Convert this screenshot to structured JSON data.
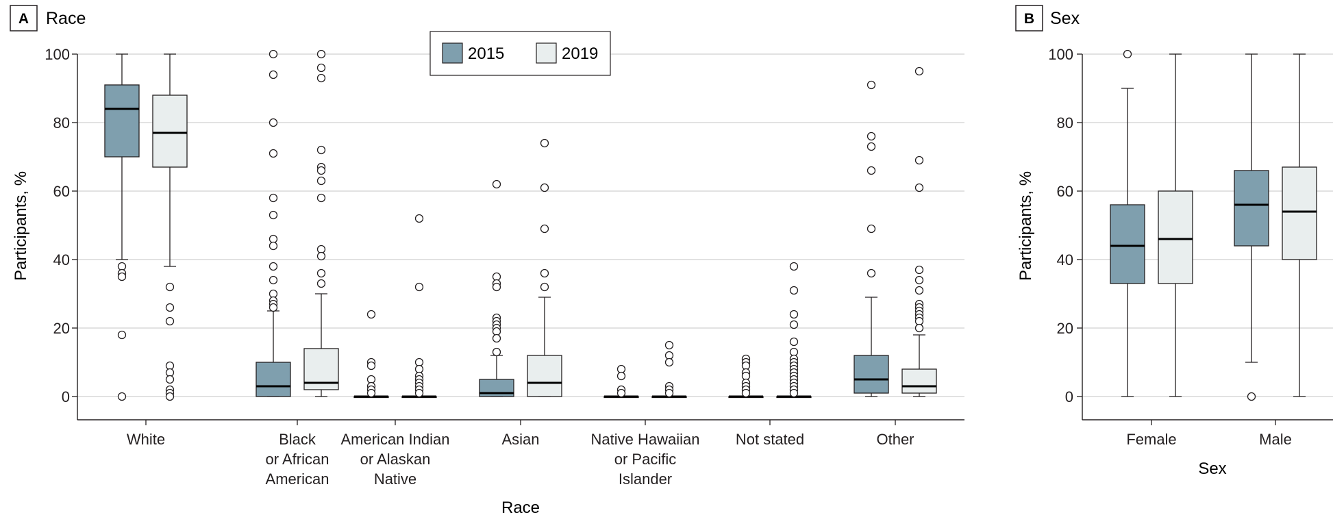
{
  "colors": {
    "series_2015": "#7f9fae",
    "series_2019": "#e9eeee",
    "grid": "#d9d9d9",
    "axis": "#231f20"
  },
  "chart_data": [
    {
      "type": "box",
      "panel_label": "A",
      "title": "Race",
      "xlabel": "Race",
      "ylabel": "Participants, %",
      "ylim": [
        0,
        100
      ],
      "yticks": [
        0,
        20,
        40,
        60,
        80,
        100
      ],
      "grid": true,
      "legend_position": "top-center",
      "series": [
        {
          "name": "2015",
          "color_key": "series_2015"
        },
        {
          "name": "2019",
          "color_key": "series_2019"
        }
      ],
      "categories": [
        {
          "label_lines": [
            "White"
          ],
          "boxes": [
            {
              "series": "2015",
              "whisker_low": 40,
              "q1": 70,
              "median": 84,
              "q3": 91,
              "whisker_high": 100,
              "outliers": [
                38,
                36,
                35,
                18,
                0
              ]
            },
            {
              "series": "2019",
              "whisker_low": 38,
              "q1": 67,
              "median": 77,
              "q3": 88,
              "whisker_high": 100,
              "outliers": [
                32,
                26,
                22,
                9,
                7,
                5,
                2,
                1,
                0
              ]
            }
          ]
        },
        {
          "label_lines": [
            "Black",
            "or African",
            "American"
          ],
          "boxes": [
            {
              "series": "2015",
              "whisker_low": 0,
              "q1": 0,
              "median": 3,
              "q3": 10,
              "whisker_high": 25,
              "outliers": [
                100,
                94,
                80,
                71,
                58,
                53,
                46,
                44,
                38,
                34,
                30,
                28,
                27,
                26
              ]
            },
            {
              "series": "2019",
              "whisker_low": 0,
              "q1": 2,
              "median": 4,
              "q3": 14,
              "whisker_high": 30,
              "outliers": [
                100,
                96,
                93,
                72,
                67,
                66,
                63,
                58,
                43,
                41,
                36,
                33
              ]
            }
          ]
        },
        {
          "label_lines": [
            "American Indian",
            "or Alaskan",
            "Native"
          ],
          "boxes": [
            {
              "series": "2015",
              "whisker_low": 0,
              "q1": 0,
              "median": 0,
              "q3": 0,
              "whisker_high": 0,
              "outliers": [
                24,
                10,
                9,
                5,
                3,
                2,
                1
              ]
            },
            {
              "series": "2019",
              "whisker_low": 0,
              "q1": 0,
              "median": 0,
              "q3": 0,
              "whisker_high": 0,
              "outliers": [
                52,
                32,
                10,
                8,
                6,
                5,
                4,
                3,
                2,
                1
              ]
            }
          ]
        },
        {
          "label_lines": [
            "Asian"
          ],
          "boxes": [
            {
              "series": "2015",
              "whisker_low": 0,
              "q1": 0,
              "median": 1,
              "q3": 5,
              "whisker_high": 12,
              "outliers": [
                62,
                35,
                33,
                32,
                23,
                22,
                21,
                20,
                19,
                17,
                13
              ]
            },
            {
              "series": "2019",
              "whisker_low": 0,
              "q1": 0,
              "median": 4,
              "q3": 12,
              "whisker_high": 29,
              "outliers": [
                74,
                61,
                49,
                36,
                32
              ]
            }
          ]
        },
        {
          "label_lines": [
            "Native Hawaiian",
            "or Pacific",
            "Islander"
          ],
          "boxes": [
            {
              "series": "2015",
              "whisker_low": 0,
              "q1": 0,
              "median": 0,
              "q3": 0,
              "whisker_high": 0,
              "outliers": [
                8,
                6,
                2,
                1
              ]
            },
            {
              "series": "2019",
              "whisker_low": 0,
              "q1": 0,
              "median": 0,
              "q3": 0,
              "whisker_high": 0,
              "outliers": [
                15,
                12,
                10,
                3,
                2,
                1
              ]
            }
          ]
        },
        {
          "label_lines": [
            "Not stated"
          ],
          "boxes": [
            {
              "series": "2015",
              "whisker_low": 0,
              "q1": 0,
              "median": 0,
              "q3": 0,
              "whisker_high": 0,
              "outliers": [
                11,
                10,
                9,
                7,
                6,
                4,
                3,
                2,
                1
              ]
            },
            {
              "series": "2019",
              "whisker_low": 0,
              "q1": 0,
              "median": 0,
              "q3": 0,
              "whisker_high": 0,
              "outliers": [
                38,
                31,
                24,
                21,
                16,
                13,
                11,
                10,
                9,
                8,
                7,
                6,
                5,
                4,
                3,
                2,
                1
              ]
            }
          ]
        },
        {
          "label_lines": [
            "Other"
          ],
          "boxes": [
            {
              "series": "2015",
              "whisker_low": 0,
              "q1": 1,
              "median": 5,
              "q3": 12,
              "whisker_high": 29,
              "outliers": [
                91,
                76,
                73,
                66,
                49,
                36
              ]
            },
            {
              "series": "2019",
              "whisker_low": 0,
              "q1": 1,
              "median": 3,
              "q3": 8,
              "whisker_high": 18,
              "outliers": [
                95,
                69,
                61,
                37,
                34,
                31,
                27,
                26,
                25,
                24,
                23,
                22,
                20
              ]
            }
          ]
        }
      ]
    },
    {
      "type": "box",
      "panel_label": "B",
      "title": "Sex",
      "xlabel": "Sex",
      "ylabel": "Participants, %",
      "ylim": [
        0,
        100
      ],
      "yticks": [
        0,
        20,
        40,
        60,
        80,
        100
      ],
      "grid": true,
      "categories": [
        {
          "label_lines": [
            "Female"
          ],
          "boxes": [
            {
              "series": "2015",
              "whisker_low": 0,
              "q1": 33,
              "median": 44,
              "q3": 56,
              "whisker_high": 90,
              "outliers": [
                100
              ]
            },
            {
              "series": "2019",
              "whisker_low": 0,
              "q1": 33,
              "median": 46,
              "q3": 60,
              "whisker_high": 100,
              "outliers": []
            }
          ]
        },
        {
          "label_lines": [
            "Male"
          ],
          "boxes": [
            {
              "series": "2015",
              "whisker_low": 10,
              "q1": 44,
              "median": 56,
              "q3": 66,
              "whisker_high": 100,
              "outliers": [
                0
              ]
            },
            {
              "series": "2019",
              "whisker_low": 0,
              "q1": 40,
              "median": 54,
              "q3": 67,
              "whisker_high": 100,
              "outliers": []
            }
          ]
        }
      ]
    }
  ]
}
